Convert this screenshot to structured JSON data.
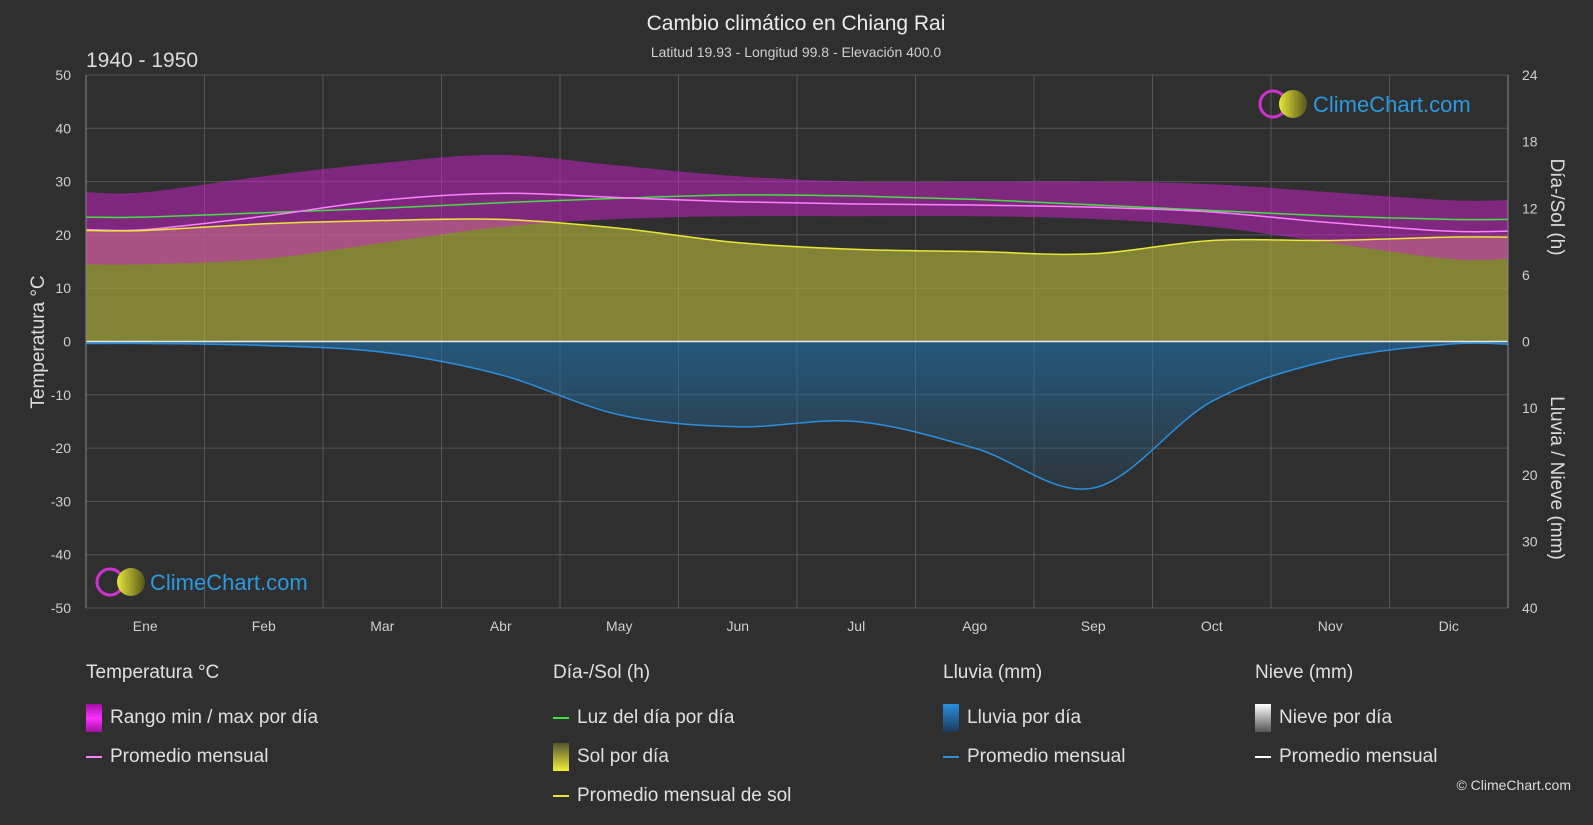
{
  "chart_data": {
    "type": "area",
    "title": "Cambio climático en Chiang Rai",
    "subtitle": "Latitud 19.93 - Longitud 99.8 - Elevación 400.0",
    "period": "1940 - 1950",
    "categories": [
      "Ene",
      "Feb",
      "Mar",
      "Abr",
      "May",
      "Jun",
      "Jul",
      "Ago",
      "Sep",
      "Oct",
      "Nov",
      "Dic"
    ],
    "y_left": {
      "label": "Temperatura °C",
      "range": [
        -50,
        50
      ],
      "ticks": [
        "50",
        "40",
        "30",
        "20",
        "10",
        "0",
        "-10",
        "-20",
        "-30",
        "-40",
        "-50"
      ]
    },
    "y_right_top": {
      "label": "Día-/Sol (h)",
      "range": [
        0,
        24
      ],
      "ticks": [
        "24",
        "18",
        "12",
        "6",
        "0"
      ]
    },
    "y_right_bottom": {
      "label": "Lluvia / Nieve (mm)",
      "range": [
        0,
        40
      ],
      "ticks": [
        "0",
        "10",
        "20",
        "30",
        "40"
      ]
    },
    "series": [
      {
        "name": "Rango min / max por día",
        "unit": "°C",
        "min": [
          14.5,
          15.5,
          18.5,
          21.5,
          23.0,
          23.5,
          23.5,
          23.5,
          23.0,
          21.5,
          18.5,
          15.5
        ],
        "max": [
          28.0,
          31.0,
          33.5,
          35.0,
          33.0,
          31.0,
          30.0,
          30.0,
          30.0,
          29.5,
          28.0,
          26.5
        ]
      },
      {
        "name": "Promedio mensual",
        "group": "temperature",
        "unit": "°C",
        "values": [
          21.0,
          23.5,
          26.5,
          27.8,
          27.0,
          26.2,
          25.8,
          25.6,
          25.2,
          24.3,
          22.3,
          20.7
        ]
      },
      {
        "name": "Luz del día por día",
        "unit": "h",
        "values": [
          11.2,
          11.6,
          12.0,
          12.5,
          12.9,
          13.2,
          13.1,
          12.8,
          12.3,
          11.8,
          11.3,
          11.0
        ]
      },
      {
        "name": "Sol por día",
        "unit": "h",
        "values": [
          10.0,
          10.6,
          10.9,
          11.0,
          10.2,
          8.9,
          8.3,
          8.1,
          7.9,
          9.1,
          9.1,
          9.4
        ]
      },
      {
        "name": "Promedio mensual de sol",
        "unit": "h",
        "values": [
          10.0,
          10.6,
          10.9,
          11.0,
          10.2,
          8.9,
          8.3,
          8.1,
          7.9,
          9.1,
          9.1,
          9.4
        ]
      },
      {
        "name": "Lluvia por día",
        "unit": "mm",
        "values": [
          0.3,
          0.6,
          1.6,
          5.0,
          11.0,
          12.8,
          12.0,
          16.0,
          22.0,
          9.0,
          2.8,
          0.4
        ]
      },
      {
        "name": "Promedio mensual",
        "group": "rain",
        "unit": "mm",
        "values": [
          0.3,
          0.6,
          1.6,
          5.0,
          11.0,
          12.8,
          12.0,
          16.0,
          22.0,
          9.0,
          2.8,
          0.4
        ]
      },
      {
        "name": "Nieve por día",
        "unit": "mm",
        "values": [
          0,
          0,
          0,
          0,
          0,
          0,
          0,
          0,
          0,
          0,
          0,
          0
        ]
      },
      {
        "name": "Promedio mensual",
        "group": "snow",
        "unit": "mm",
        "values": [
          0,
          0,
          0,
          0,
          0,
          0,
          0,
          0,
          0,
          0,
          0,
          0
        ]
      }
    ],
    "colors": {
      "temp_range": "#d020d0",
      "temp_avg": "#ff80ff",
      "daylight": "#44dd44",
      "sun_fill": "#b8b83a",
      "sun_avg": "#e8e83a",
      "rain_fill": "#1f6fa8",
      "rain_avg": "#2a8fe0",
      "snow": "#ffffff"
    }
  },
  "legend": {
    "temperature": {
      "head": "Temperatura °C",
      "items": [
        "Rango min / max por día",
        "Promedio mensual"
      ]
    },
    "sun": {
      "head": "Día-/Sol (h)",
      "items": [
        "Luz del día por día",
        "Sol por día",
        "Promedio mensual de sol"
      ]
    },
    "rain": {
      "head": "Lluvia (mm)",
      "items": [
        "Lluvia por día",
        "Promedio mensual"
      ]
    },
    "snow": {
      "head": "Nieve (mm)",
      "items": [
        "Nieve por día",
        "Promedio mensual"
      ]
    }
  },
  "logo_text": "ClimeChart.com",
  "copyright": "© ClimeChart.com"
}
